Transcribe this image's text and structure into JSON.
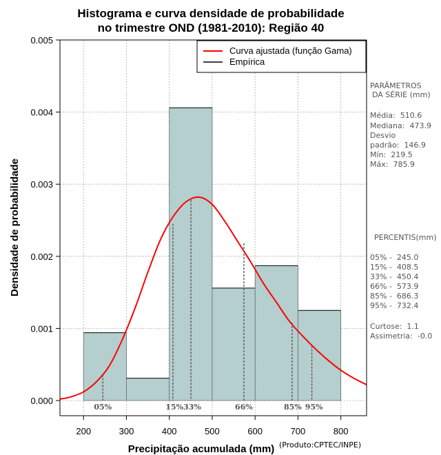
{
  "chart_data": {
    "type": "histogram",
    "title": "Histograma e curva densidade de probabilidade",
    "subtitle": "no trimestre OND (1981-2010): Região 40",
    "xlabel": "Precipitação acumulada (mm)",
    "ylabel": "Densidade de probabilidade",
    "xlim": [
      145,
      860
    ],
    "ylim": [
      0,
      0.005
    ],
    "x_ticks": [
      200,
      300,
      400,
      500,
      600,
      700,
      800
    ],
    "y_ticks": [
      0.0,
      0.001,
      0.002,
      0.003,
      0.004,
      0.005
    ],
    "y_tick_labels": [
      "0.000",
      "0.001",
      "0.002",
      "0.003",
      "0.004",
      "0.005"
    ],
    "grid": true,
    "bar_color": "#b5cece",
    "curve_color": "#ff0000",
    "bins": [
      {
        "start": 200,
        "end": 300,
        "density": 0.00094
      },
      {
        "start": 300,
        "end": 400,
        "density": 0.00031
      },
      {
        "start": 400,
        "end": 500,
        "density": 0.00406
      },
      {
        "start": 500,
        "end": 600,
        "density": 0.00156
      },
      {
        "start": 600,
        "end": 700,
        "density": 0.00187
      },
      {
        "start": 700,
        "end": 800,
        "density": 0.00125
      }
    ],
    "curve": {
      "name": "Curva ajustada (função Gama)",
      "x": [
        145,
        170,
        200,
        230,
        260,
        290,
        320,
        350,
        380,
        410,
        440,
        470,
        500,
        530,
        560,
        590,
        620,
        650,
        680,
        710,
        740,
        770,
        800,
        830,
        860
      ],
      "y": [
        2e-05,
        5e-05,
        0.00012,
        0.00026,
        0.00048,
        0.00084,
        0.00128,
        0.00178,
        0.00224,
        0.00256,
        0.00276,
        0.00282,
        0.00272,
        0.00248,
        0.0022,
        0.00192,
        0.00162,
        0.00136,
        0.0011,
        0.0009,
        0.00072,
        0.00056,
        0.00042,
        0.00031,
        0.00022
      ]
    },
    "percentile_markers": [
      {
        "label": "05%",
        "value": 245.0,
        "density": 0.00036
      },
      {
        "label": "15%",
        "value": 408.5,
        "density": 0.00245
      },
      {
        "label": "33%",
        "value": 450.4,
        "density": 0.00278
      },
      {
        "label": "66%",
        "value": 573.9,
        "density": 0.00218
      },
      {
        "label": "85%",
        "value": 686.3,
        "density": 0.00108
      },
      {
        "label": "95%",
        "value": 732.4,
        "density": 0.00076
      }
    ],
    "legend": {
      "position": "top-right",
      "entries": [
        {
          "label": "Curva ajustada (função Gama)",
          "color": "#ff0000"
        },
        {
          "label": "Empírica",
          "color": "#000000"
        }
      ]
    }
  },
  "side_panel": {
    "params_title_1": "PARÂMETROS",
    "params_title_2": "DA SÉRIE (mm)",
    "media": "Média:  510.6",
    "mediana": "Mediana:  473.9",
    "desvio_1": "Desvio",
    "desvio_2": "padrão:  146.9",
    "min": "Mín:  219.5",
    "max": "Máx:  785.9",
    "percentis_title": "PERCENTIS(mm)",
    "p05": "05% -  245.0",
    "p15": "15% -  408.5",
    "p33": "33% -  450.4",
    "p66": "66% -  573.9",
    "p85": "85% -  686.3",
    "p95": "95% -  732.4",
    "curtose": "Curtose:  1.1",
    "assimetria": "Assimetria:  -0.0"
  },
  "credit": "(Produto:CPTEC/INPE)"
}
